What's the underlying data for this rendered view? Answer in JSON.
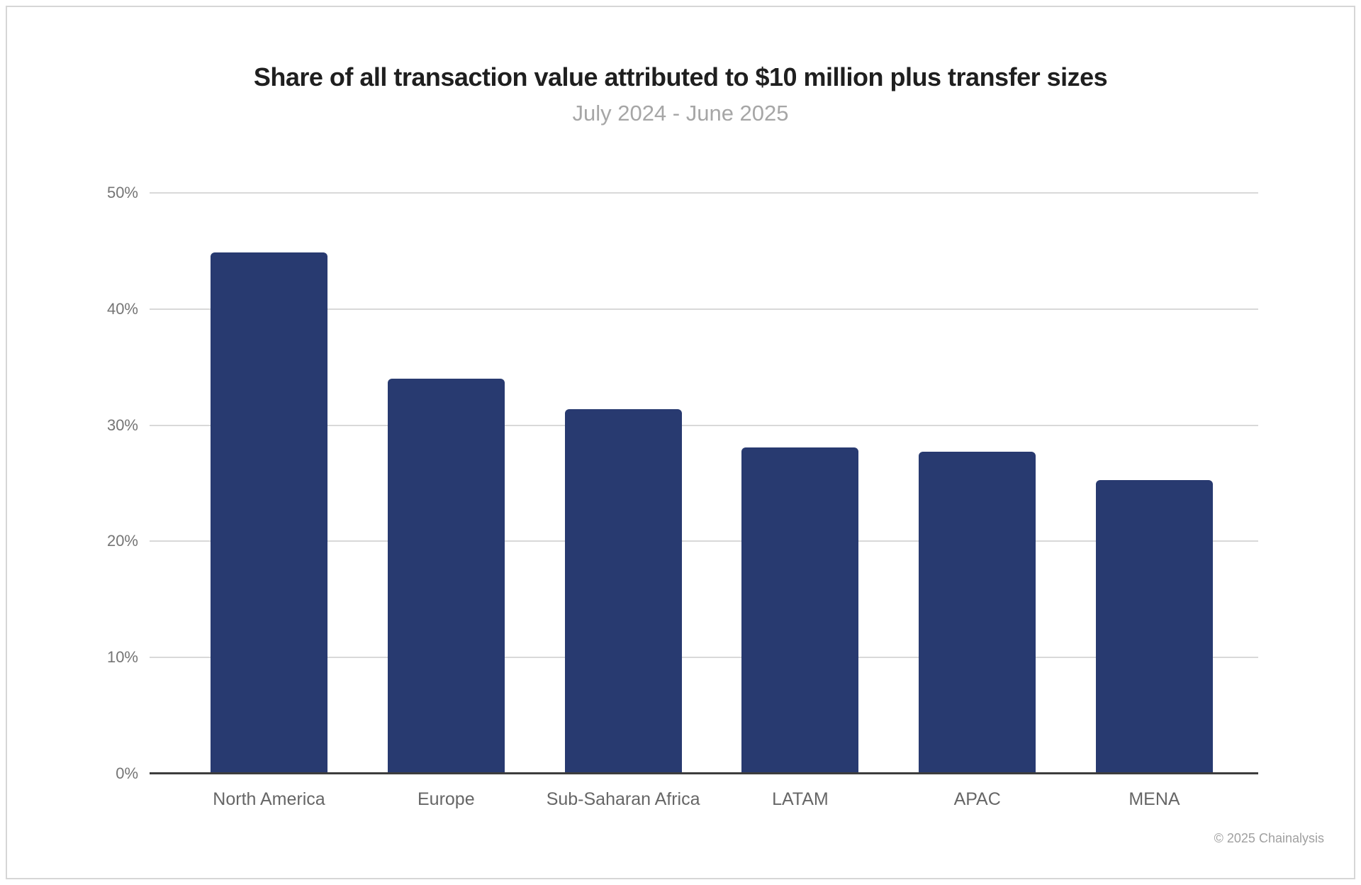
{
  "page": {
    "background": "#ffffff",
    "frame_border_color": "#d6d6d6"
  },
  "header": {
    "title": "Share of all transaction value attributed to $10 million plus transfer sizes",
    "subtitle": "July 2024 - June 2025",
    "title_color": "#1f1f1f",
    "subtitle_color": "#a6a6a6"
  },
  "chart_data": {
    "type": "bar",
    "title": "Share of all transaction value attributed to $10 million plus transfer sizes",
    "subtitle": "July 2024 - June 2025",
    "categories": [
      "North America",
      "Europe",
      "Sub-Saharan Africa",
      "LATAM",
      "APAC",
      "MENA"
    ],
    "values": [
      44.9,
      34.0,
      31.4,
      28.1,
      27.7,
      25.3
    ],
    "value_unit": "%",
    "xlabel": "",
    "ylabel": "",
    "ylim": [
      0,
      50
    ],
    "yticks": [
      0,
      10,
      20,
      30,
      40,
      50
    ],
    "ytick_labels": [
      "0%",
      "10%",
      "20%",
      "30%",
      "40%",
      "50%"
    ],
    "grid": "horizontal gridlines every 10%",
    "legend": "none",
    "bar_color": "#283a70",
    "gridline_color": "#d9d9d9",
    "axis_line_color": "#3d3d3d",
    "ytick_label_color": "#757575",
    "xtick_label_color": "#666666"
  },
  "footer": {
    "copyright": "© 2025 Chainalysis"
  }
}
